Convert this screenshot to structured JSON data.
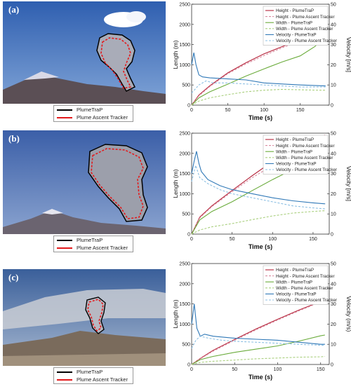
{
  "panels": [
    {
      "label": "(a)",
      "photo_legend": [
        {
          "name": "PlumeTraP",
          "color": "#000000"
        },
        {
          "name": "Plume Ascent Tracker",
          "color": "#e31a1c"
        }
      ],
      "chart_data": {
        "type": "line",
        "xlabel": "Time (s)",
        "ylabel_left": "Length (m)",
        "ylabel_right": "Velocity [m/s]",
        "xlim": [
          0,
          190
        ],
        "xticks": [
          0,
          50,
          100,
          150
        ],
        "ylim_left": [
          0,
          2500
        ],
        "yticks_left": [
          0,
          500,
          1000,
          1500,
          2000,
          2500
        ],
        "ylim_right": [
          0,
          50
        ],
        "yticks_right": [
          0,
          10,
          20,
          30,
          40,
          50
        ],
        "legend_position": "top-right",
        "series": [
          {
            "name": "Height - PlumeTraP",
            "color": "#b5243a",
            "dash": "solid",
            "axis": "left",
            "x": [
              0,
              10,
              25,
              50,
              75,
              100,
              125,
              150,
              175,
              185
            ],
            "y": [
              0,
              250,
              480,
              800,
              1050,
              1270,
              1450,
              1620,
              1770,
              1830
            ]
          },
          {
            "name": "Height - Plume Ascent Tracker",
            "color": "#d98ca0",
            "dash": "dashed",
            "axis": "left",
            "x": [
              0,
              10,
              25,
              50,
              75,
              100,
              125,
              150,
              175,
              185
            ],
            "y": [
              0,
              230,
              460,
              780,
              1020,
              1230,
              1420,
              1590,
              1720,
              1760
            ]
          },
          {
            "name": "Width - PlumeTraP",
            "color": "#6aab3b",
            "dash": "solid",
            "axis": "left",
            "x": [
              0,
              10,
              25,
              50,
              75,
              100,
              125,
              150,
              170,
              185
            ],
            "y": [
              0,
              180,
              330,
              520,
              720,
              900,
              1070,
              1220,
              1450,
              1700
            ]
          },
          {
            "name": "Width - Plume Ascent Tracker",
            "color": "#a9cf7d",
            "dash": "dashed",
            "axis": "left",
            "x": [
              0,
              10,
              25,
              50,
              75,
              100,
              125,
              150,
              175,
              185
            ],
            "y": [
              0,
              100,
              180,
              260,
              330,
              370,
              390,
              380,
              370,
              370
            ]
          },
          {
            "name": "Velocity - PlumeTraP",
            "color": "#2f78b7",
            "dash": "solid",
            "axis": "right",
            "x": [
              0,
              3,
              6,
              10,
              15,
              25,
              50,
              75,
              100,
              125,
              150,
              185
            ],
            "y": [
              20,
              26,
              20,
              15,
              14,
              13.5,
              13,
              12.5,
              11,
              10.5,
              10,
              9.5
            ]
          },
          {
            "name": "Velocity - Plume Ascent Tracker",
            "color": "#8dc0e4",
            "dash": "dashed",
            "axis": "right",
            "x": [
              0,
              5,
              10,
              20,
              30,
              50,
              75,
              100,
              125,
              150,
              185
            ],
            "y": [
              6,
              8,
              10,
              12,
              11,
              11,
              10.5,
              10,
              9.5,
              9,
              9
            ]
          }
        ]
      }
    },
    {
      "label": "(b)",
      "photo_legend": [
        {
          "name": "PlumeTraP",
          "color": "#000000"
        },
        {
          "name": "Plume Ascent Tracker",
          "color": "#e31a1c"
        }
      ],
      "chart_data": {
        "type": "line",
        "xlabel": "Time (s)",
        "ylabel_left": "Length (m)",
        "ylabel_right": "Velocity [m/s]",
        "xlim": [
          0,
          170
        ],
        "xticks": [
          0,
          50,
          100,
          150
        ],
        "ylim_left": [
          0,
          2500
        ],
        "yticks_left": [
          0,
          500,
          1000,
          1500,
          2000,
          2500
        ],
        "ylim_right": [
          0,
          50
        ],
        "yticks_right": [
          0,
          10,
          20,
          30,
          40,
          50
        ],
        "legend_position": "top-right",
        "series": [
          {
            "name": "Height - PlumeTraP",
            "color": "#b5243a",
            "dash": "solid",
            "axis": "left",
            "x": [
              0,
              10,
              25,
              50,
              75,
              100,
              125,
              150,
              165
            ],
            "y": [
              0,
              420,
              700,
              1080,
              1450,
              1800,
              2100,
              2350,
              2450
            ]
          },
          {
            "name": "Height - Plume Ascent Tracker",
            "color": "#d98ca0",
            "dash": "dashed",
            "axis": "left",
            "x": [
              0,
              10,
              25,
              50,
              75,
              100,
              125,
              150,
              165
            ],
            "y": [
              0,
              400,
              680,
              1050,
              1400,
              1700,
              2000,
              2150,
              2200
            ]
          },
          {
            "name": "Width - PlumeTraP",
            "color": "#6aab3b",
            "dash": "solid",
            "axis": "left",
            "x": [
              0,
              10,
              25,
              50,
              75,
              100,
              125,
              150,
              165
            ],
            "y": [
              0,
              350,
              560,
              800,
              1080,
              1350,
              1600,
              1800,
              1900
            ]
          },
          {
            "name": "Width - Plume Ascent Tracker",
            "color": "#a9cf7d",
            "dash": "dashed",
            "axis": "left",
            "x": [
              0,
              10,
              25,
              50,
              75,
              100,
              125,
              150,
              165
            ],
            "y": [
              0,
              100,
              180,
              260,
              360,
              450,
              520,
              560,
              580
            ]
          },
          {
            "name": "Velocity - PlumeTraP",
            "color": "#2f78b7",
            "dash": "solid",
            "axis": "right",
            "x": [
              0,
              3,
              6,
              9,
              12,
              20,
              35,
              50,
              75,
              100,
              125,
              150,
              165
            ],
            "y": [
              30,
              36,
              41,
              35,
              31,
              27,
              24,
              22,
              20,
              18,
              16.5,
              15.5,
              15
            ]
          },
          {
            "name": "Velocity - Plume Ascent Tracker",
            "color": "#8dc0e4",
            "dash": "dashed",
            "axis": "right",
            "x": [
              0,
              5,
              10,
              20,
              35,
              50,
              75,
              100,
              125,
              150,
              165
            ],
            "y": [
              26,
              34,
              28,
              25,
              22,
              20,
              18,
              16,
              14,
              13,
              12.5
            ]
          }
        ]
      }
    },
    {
      "label": "(c)",
      "photo_legend": [
        {
          "name": "PlumeTraP",
          "color": "#000000"
        },
        {
          "name": "Plume Ascent Tracker",
          "color": "#e31a1c"
        }
      ],
      "chart_data": {
        "type": "line",
        "xlabel": "Time (s)",
        "ylabel_left": "Length (m)",
        "ylabel_right": "Velocity (m/s)",
        "xlim": [
          0,
          160
        ],
        "xticks": [
          0,
          50,
          100,
          150
        ],
        "ylim_left": [
          0,
          2500
        ],
        "yticks_left": [
          0,
          500,
          1000,
          1500,
          2000,
          2500
        ],
        "ylim_right": [
          0,
          50
        ],
        "yticks_right": [
          0,
          10,
          20,
          30,
          40,
          50
        ],
        "legend_position": "top-right",
        "series": [
          {
            "name": "Height - PlumeTraP",
            "color": "#b5243a",
            "dash": "solid",
            "axis": "left",
            "x": [
              0,
              10,
              25,
              50,
              75,
              100,
              125,
              150,
              155
            ],
            "y": [
              0,
              150,
              350,
              620,
              880,
              1120,
              1350,
              1560,
              1600
            ]
          },
          {
            "name": "Height - Plume Ascent Tracker",
            "color": "#d98ca0",
            "dash": "dashed",
            "axis": "left",
            "x": [
              0,
              10,
              25,
              50,
              75,
              100,
              125,
              150,
              155
            ],
            "y": [
              0,
              140,
              330,
              600,
              860,
              1100,
              1330,
              1550,
              1580
            ]
          },
          {
            "name": "Width - PlumeTraP",
            "color": "#6aab3b",
            "dash": "solid",
            "axis": "left",
            "x": [
              0,
              10,
              25,
              50,
              75,
              100,
              125,
              150,
              155
            ],
            "y": [
              0,
              120,
              200,
              300,
              380,
              460,
              580,
              710,
              730
            ]
          },
          {
            "name": "Width - Plume Ascent Tracker",
            "color": "#a9cf7d",
            "dash": "dashed",
            "axis": "left",
            "x": [
              0,
              10,
              25,
              50,
              75,
              100,
              125,
              150,
              155
            ],
            "y": [
              0,
              50,
              80,
              110,
              140,
              160,
              180,
              190,
              200
            ]
          },
          {
            "name": "Velocity - PlumeTraP",
            "color": "#2f78b7",
            "dash": "solid",
            "axis": "right",
            "x": [
              0,
              3,
              6,
              10,
              15,
              25,
              50,
              75,
              100,
              125,
              150,
              155
            ],
            "y": [
              20,
              30,
              18,
              14,
              15,
              14,
              13,
              12.5,
              12,
              11,
              10,
              10
            ]
          },
          {
            "name": "Velocity - Plume Ascent Tracker",
            "color": "#8dc0e4",
            "dash": "dashed",
            "axis": "right",
            "x": [
              0,
              5,
              10,
              20,
              35,
              50,
              75,
              100,
              125,
              150,
              155
            ],
            "y": [
              8,
              12,
              14,
              13,
              12,
              11.5,
              11,
              10.5,
              10,
              9.5,
              9.5
            ]
          }
        ]
      }
    }
  ]
}
